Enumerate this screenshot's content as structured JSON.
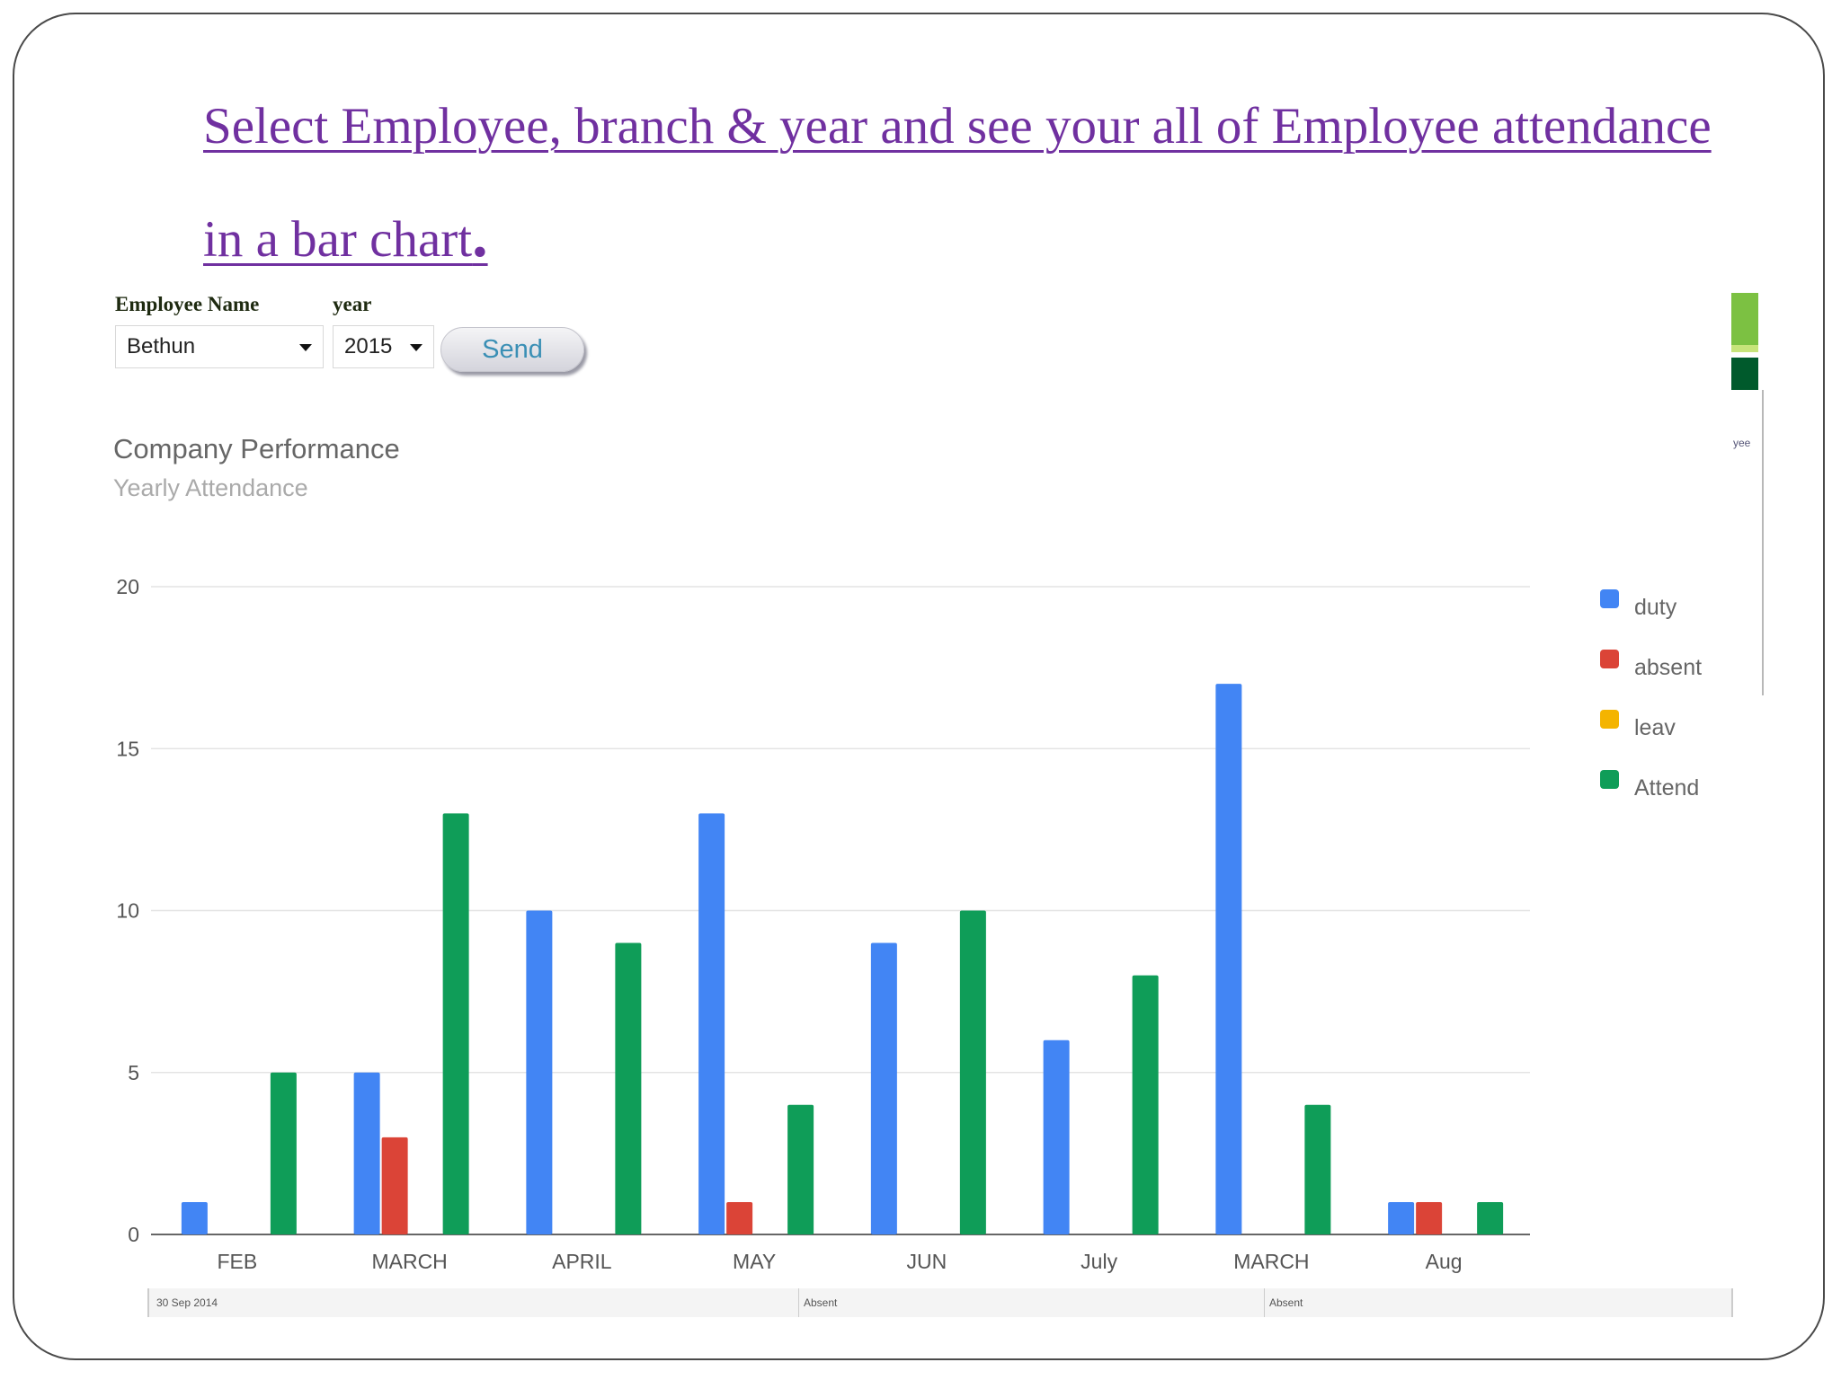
{
  "heading": {
    "line1": "Select Employee, branch & year and see your all of Employee attendance",
    "line2": "in a bar chart",
    "period": "."
  },
  "form": {
    "employee_label": "Employee Name",
    "year_label": "year",
    "employee_value": "Bethun",
    "year_value": "2015",
    "send_label": "Send"
  },
  "side_strip_text": "yee",
  "bottom_bar": {
    "left_label": "30 Sep 2014",
    "mid_label": "Absent",
    "right_label": "Absent"
  },
  "colors": {
    "duty": "#4285f4",
    "absent": "#db4437",
    "leav": "#f4b400",
    "attend": "#0f9d58"
  },
  "chart_data": {
    "type": "bar",
    "title": "Company Performance",
    "subtitle": "Yearly Attendance",
    "categories": [
      "FEB",
      "MARCH",
      "APRIL",
      "MAY",
      "JUN",
      "July",
      "MARCH",
      "Aug"
    ],
    "series": [
      {
        "name": "duty",
        "color": "#4285f4",
        "values": [
          1,
          5,
          10,
          13,
          9,
          6,
          17,
          1
        ]
      },
      {
        "name": "absent",
        "color": "#db4437",
        "values": [
          0,
          3,
          0,
          1,
          0,
          0,
          0,
          1
        ]
      },
      {
        "name": "leav",
        "color": "#f4b400",
        "values": [
          0,
          0,
          0,
          0,
          0,
          0,
          0,
          0
        ]
      },
      {
        "name": "Attend",
        "color": "#0f9d58",
        "values": [
          5,
          13,
          9,
          4,
          10,
          8,
          4,
          1
        ]
      }
    ],
    "yticks": [
      0,
      5,
      10,
      15,
      20
    ],
    "ylim": [
      0,
      20
    ],
    "grid": true,
    "legend": "right"
  }
}
